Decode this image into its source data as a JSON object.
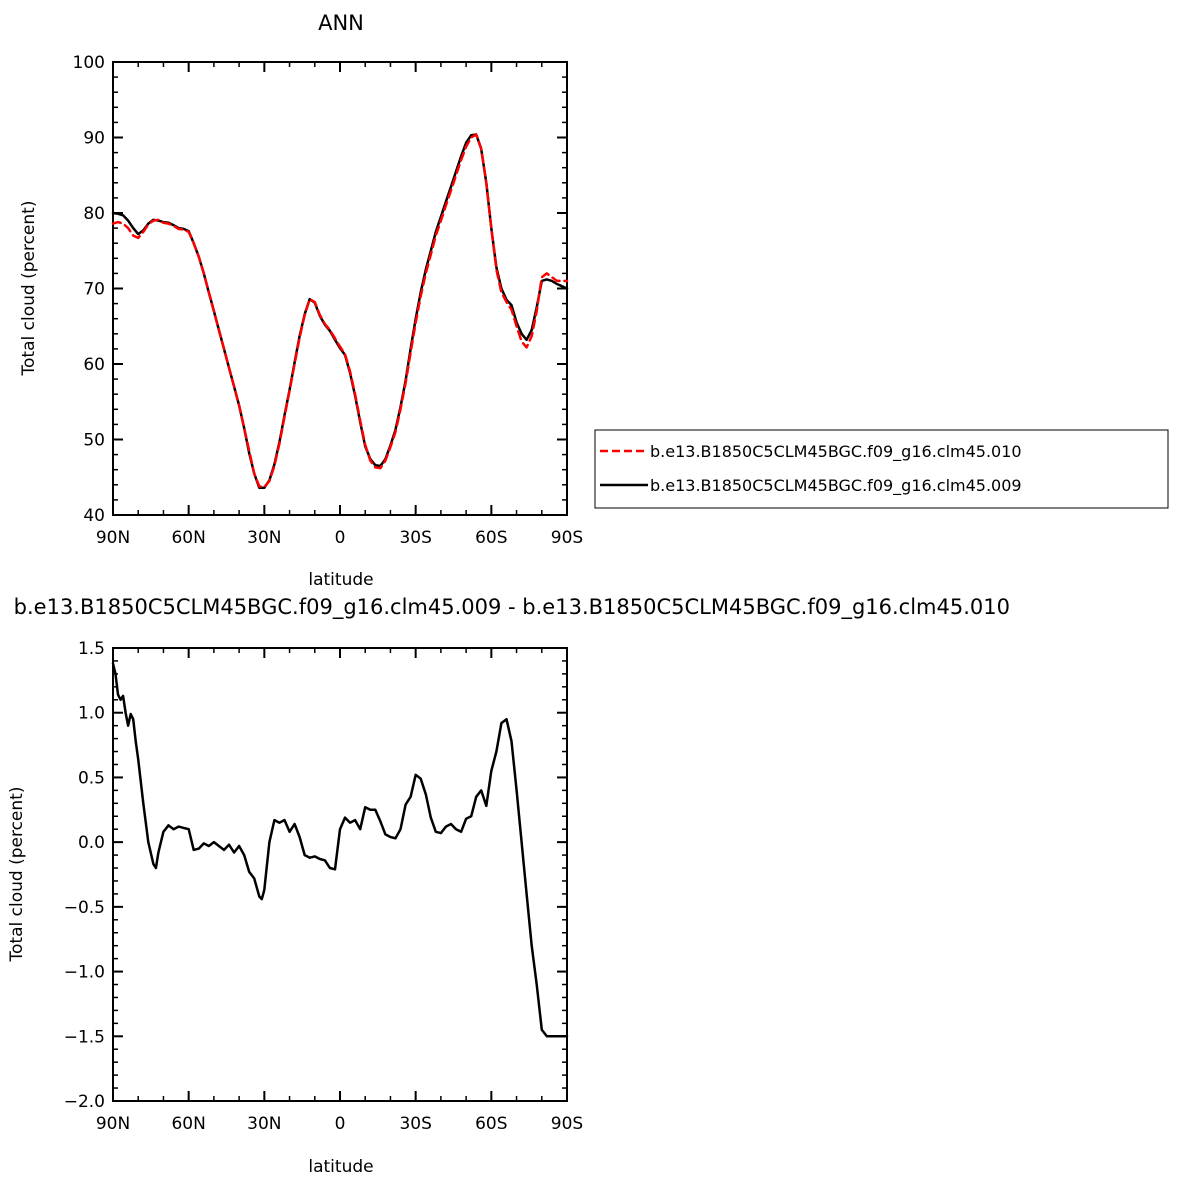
{
  "chart_data": [
    {
      "type": "line",
      "title": "ANN",
      "xlabel": "latitude",
      "ylabel": "Total cloud (percent)",
      "xlim": [
        90,
        -90
      ],
      "ylim": [
        40,
        100
      ],
      "x_ticks": [
        90,
        60,
        30,
        0,
        -30,
        -60,
        -90
      ],
      "x_tick_labels": [
        "90N",
        "60N",
        "30N",
        "0",
        "30S",
        "60S",
        "90S"
      ],
      "y_ticks": [
        40,
        50,
        60,
        70,
        80,
        90,
        100
      ],
      "y_tick_labels": [
        "40",
        "50",
        "60",
        "70",
        "80",
        "90",
        "100"
      ],
      "grid": false,
      "legend_position": "right",
      "series": [
        {
          "name": "b.e13.B1850C5CLM45BGC.f09_g16.clm45.010",
          "color": "#ff0000",
          "dash": "dashed",
          "x": [
            90,
            88,
            86,
            84,
            82,
            80,
            78,
            76,
            74,
            72,
            70,
            68,
            66,
            64,
            62,
            60,
            58,
            56,
            54,
            52,
            50,
            48,
            46,
            44,
            42,
            40,
            38,
            36,
            34,
            32,
            30,
            28,
            26,
            24,
            22,
            20,
            18,
            16,
            14,
            12,
            10,
            8,
            6,
            4,
            2,
            0,
            -2,
            -4,
            -6,
            -8,
            -10,
            -12,
            -14,
            -16,
            -18,
            -20,
            -22,
            -24,
            -26,
            -28,
            -30,
            -32,
            -34,
            -36,
            -38,
            -40,
            -42,
            -44,
            -46,
            -48,
            -50,
            -52,
            -54,
            -56,
            -58,
            -60,
            -62,
            -64,
            -66,
            -68,
            -70,
            -72,
            -74,
            -76,
            -78,
            -80,
            -82,
            -84,
            -86,
            -88,
            -90
          ],
          "y": [
            78.6,
            78.8,
            78.6,
            78.0,
            77.0,
            76.7,
            77.5,
            78.5,
            79.0,
            79.1,
            78.7,
            78.6,
            78.3,
            77.9,
            77.8,
            77.5,
            76.0,
            74.2,
            72.0,
            69.5,
            67.0,
            64.5,
            62.0,
            59.5,
            57.0,
            54.5,
            51.5,
            48.5,
            45.5,
            43.8,
            43.7,
            44.5,
            46.5,
            49.5,
            53.0,
            56.5,
            60.0,
            63.5,
            66.5,
            68.6,
            68.2,
            66.5,
            65.3,
            64.5,
            63.4,
            62.3,
            61.3,
            59.0,
            56.0,
            52.5,
            49.3,
            47.2,
            46.3,
            46.2,
            47.2,
            49.0,
            51.0,
            54.0,
            57.5,
            61.5,
            65.5,
            69.0,
            72.0,
            74.5,
            77.0,
            79.0,
            81.0,
            83.0,
            85.0,
            87.0,
            88.8,
            90.0,
            90.4,
            88.5,
            84.0,
            78.0,
            72.5,
            69.5,
            68.2,
            67.2,
            65.0,
            63.0,
            62.2,
            63.7,
            67.0,
            71.5,
            72.0,
            71.5,
            71.0,
            71.0,
            71.0
          ]
        },
        {
          "name": "b.e13.B1850C5CLM45BGC.f09_g16.clm45.009",
          "color": "#000000",
          "dash": "solid",
          "x": [
            90,
            88,
            86,
            84,
            82,
            80,
            78,
            76,
            74,
            72,
            70,
            68,
            66,
            64,
            62,
            60,
            58,
            56,
            54,
            52,
            50,
            48,
            46,
            44,
            42,
            40,
            38,
            36,
            34,
            32,
            30,
            28,
            26,
            24,
            22,
            20,
            18,
            16,
            14,
            12,
            10,
            8,
            6,
            4,
            2,
            0,
            -2,
            -4,
            -6,
            -8,
            -10,
            -12,
            -14,
            -16,
            -18,
            -20,
            -22,
            -24,
            -26,
            -28,
            -30,
            -32,
            -34,
            -36,
            -38,
            -40,
            -42,
            -44,
            -46,
            -48,
            -50,
            -52,
            -54,
            -56,
            -58,
            -60,
            -62,
            -64,
            -66,
            -68,
            -70,
            -72,
            -74,
            -76,
            -78,
            -80,
            -82,
            -84,
            -86,
            -88,
            -90
          ],
          "y": [
            80.0,
            79.9,
            79.7,
            79.0,
            78.0,
            77.2,
            77.7,
            78.6,
            79.1,
            79.0,
            78.8,
            78.7,
            78.4,
            78.0,
            77.9,
            77.6,
            76.0,
            74.2,
            72.0,
            69.5,
            67.0,
            64.5,
            62.0,
            59.5,
            57.0,
            54.5,
            51.5,
            48.2,
            45.5,
            43.6,
            43.6,
            44.6,
            46.7,
            49.7,
            53.2,
            56.6,
            60.2,
            63.7,
            66.6,
            68.6,
            68.1,
            66.4,
            65.2,
            64.4,
            63.2,
            62.1,
            61.2,
            58.8,
            55.8,
            52.3,
            49.1,
            47.4,
            46.6,
            46.5,
            47.4,
            49.2,
            51.3,
            54.3,
            57.8,
            62.0,
            66.0,
            69.5,
            72.5,
            75.0,
            77.5,
            79.5,
            81.5,
            83.5,
            85.5,
            87.5,
            89.3,
            90.3,
            90.4,
            88.5,
            84.0,
            78.0,
            72.8,
            70.0,
            68.5,
            67.8,
            65.5,
            64.0,
            63.2,
            64.5,
            67.5,
            71.0,
            71.2,
            71.0,
            70.6,
            70.3,
            70.0
          ]
        }
      ]
    },
    {
      "type": "line",
      "title": "b.e13.B1850C5CLM45BGC.f09_g16.clm45.009 - b.e13.B1850C5CLM45BGC.f09_g16.clm45.010",
      "xlabel": "latitude",
      "ylabel": "Total cloud (percent)",
      "xlim": [
        90,
        -90
      ],
      "ylim": [
        -2.0,
        1.5
      ],
      "x_ticks": [
        90,
        60,
        30,
        0,
        -30,
        -60,
        -90
      ],
      "x_tick_labels": [
        "90N",
        "60N",
        "30N",
        "0",
        "30S",
        "60S",
        "90S"
      ],
      "y_ticks": [
        -2.0,
        -1.5,
        -1.0,
        -0.5,
        0.0,
        0.5,
        1.0,
        1.5
      ],
      "y_tick_labels": [
        "−2.0",
        "−1.5",
        "−1.0",
        "−0.5",
        "0.0",
        "0.5",
        "1.0",
        "1.5"
      ],
      "grid": false,
      "series": [
        {
          "color": "#000000",
          "dash": "solid",
          "x": [
            90,
            89,
            88,
            87,
            86,
            85,
            84,
            83,
            82,
            81,
            80,
            78,
            76,
            74,
            73,
            72,
            70,
            68,
            66,
            64,
            62,
            60,
            58,
            56,
            54,
            52,
            50,
            48,
            46,
            44,
            42,
            40,
            38,
            36,
            34,
            32,
            31,
            30,
            29,
            28,
            26,
            24,
            22,
            20,
            18,
            16,
            14,
            12,
            10,
            8,
            6,
            4,
            2,
            0,
            -2,
            -4,
            -6,
            -8,
            -10,
            -12,
            -14,
            -16,
            -18,
            -20,
            -22,
            -24,
            -26,
            -28,
            -30,
            -32,
            -34,
            -36,
            -38,
            -40,
            -42,
            -44,
            -46,
            -48,
            -50,
            -52,
            -54,
            -56,
            -58,
            -60,
            -62,
            -64,
            -66,
            -68,
            -70,
            -72,
            -74,
            -76,
            -78,
            -80,
            -82,
            -84,
            -85,
            -86,
            -87,
            -88,
            -89,
            -90
          ],
          "y": [
            1.38,
            1.3,
            1.14,
            1.1,
            1.13,
            1.0,
            0.9,
            0.99,
            0.95,
            0.78,
            0.64,
            0.3,
            0.0,
            -0.17,
            -0.2,
            -0.08,
            0.08,
            0.13,
            0.1,
            0.12,
            0.11,
            0.1,
            -0.06,
            -0.05,
            -0.01,
            -0.03,
            0.0,
            -0.03,
            -0.06,
            -0.02,
            -0.08,
            -0.03,
            -0.1,
            -0.23,
            -0.28,
            -0.42,
            -0.44,
            -0.37,
            -0.18,
            0.0,
            0.17,
            0.15,
            0.17,
            0.08,
            0.14,
            0.04,
            -0.1,
            -0.12,
            -0.11,
            -0.13,
            -0.14,
            -0.2,
            -0.21,
            0.1,
            0.19,
            0.15,
            0.17,
            0.1,
            0.27,
            0.25,
            0.25,
            0.16,
            0.06,
            0.04,
            0.03,
            0.1,
            0.29,
            0.35,
            0.52,
            0.49,
            0.37,
            0.19,
            0.08,
            0.07,
            0.12,
            0.14,
            0.1,
            0.08,
            0.18,
            0.2,
            0.35,
            0.4,
            0.28,
            0.55,
            0.7,
            0.92,
            0.95,
            0.78,
            0.4,
            0.0,
            -0.4,
            -0.8,
            -1.1,
            -1.45,
            -1.5,
            -1.5,
            -1.5,
            -1.5,
            -1.5,
            -1.5,
            -1.5,
            -1.5
          ]
        }
      ]
    }
  ]
}
